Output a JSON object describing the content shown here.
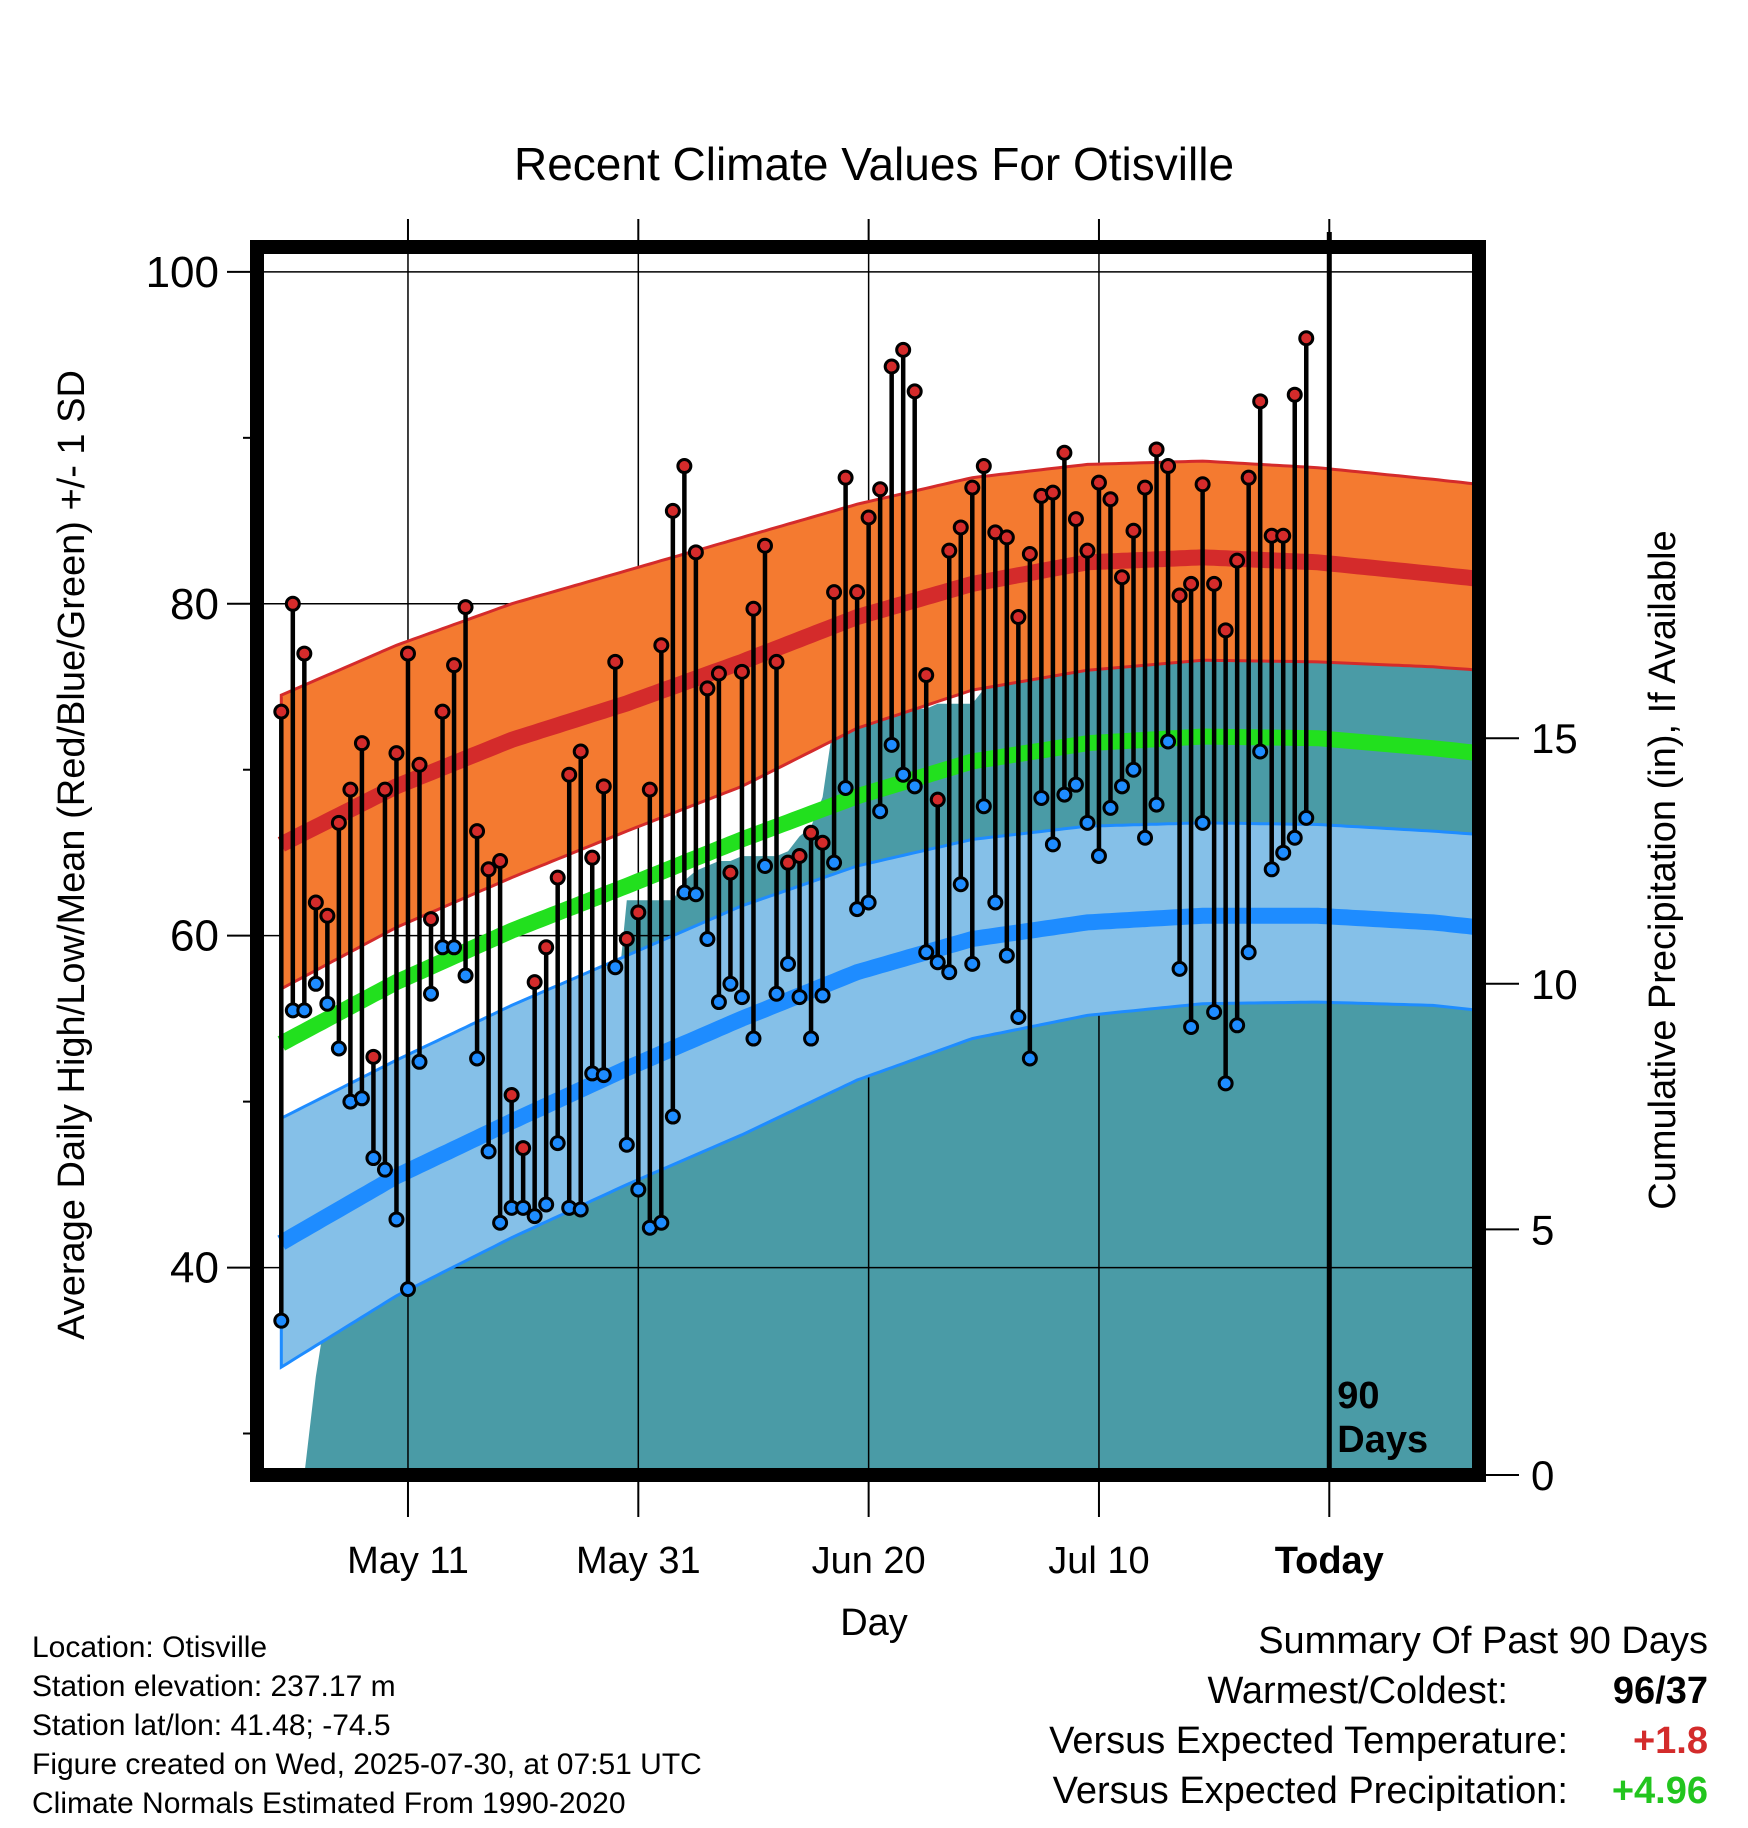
{
  "chart_data": {
    "type": "line",
    "title": "Recent Climate Values For Otisville",
    "xlabel": "Day",
    "ylabel": "Average Daily High/Low/Mean (Red/Blue/Green) +/- 1 SD",
    "ylabel_right": "Cumulative Precipitation (in), If Available",
    "ylim": [
      27.5,
      101.5
    ],
    "ylim_right": [
      0,
      25
    ],
    "y_ticks": [
      40,
      60,
      80,
      100
    ],
    "y_ticks_right": [
      0,
      5,
      10,
      15
    ],
    "x_range_days": [
      1,
      105
    ],
    "x_ticks": [
      {
        "day": 12,
        "label": "May 11"
      },
      {
        "day": 32,
        "label": "May 31"
      },
      {
        "day": 52,
        "label": "Jun 20"
      },
      {
        "day": 72,
        "label": "Jul 10"
      },
      {
        "day": 92,
        "label": "Today"
      }
    ],
    "today_marker": {
      "day": 92,
      "label_line1": "90",
      "label_line2": "Days"
    },
    "normals": {
      "days": [
        1,
        11,
        21,
        31,
        41,
        51,
        61,
        71,
        81,
        91,
        101,
        105
      ],
      "high_mean": [
        65.5,
        69.0,
        71.8,
        74.0,
        76.5,
        79.2,
        81.2,
        82.5,
        82.8,
        82.5,
        81.8,
        81.5
      ],
      "high_upper": [
        74.5,
        77.5,
        80.0,
        82.0,
        84.0,
        86.0,
        87.6,
        88.4,
        88.6,
        88.2,
        87.5,
        87.2
      ],
      "high_lower": [
        56.8,
        60.5,
        63.5,
        66.3,
        69.0,
        72.5,
        74.8,
        76.0,
        76.6,
        76.5,
        76.2,
        76.0
      ],
      "mean_mean": [
        53.5,
        57.2,
        60.3,
        63.0,
        65.8,
        68.4,
        70.5,
        71.6,
        72.0,
        71.9,
        71.3,
        71.0
      ],
      "low_mean": [
        41.5,
        45.5,
        48.8,
        52.0,
        55.0,
        57.8,
        59.8,
        60.8,
        61.2,
        61.2,
        60.8,
        60.5
      ],
      "low_upper": [
        49.0,
        52.5,
        55.8,
        58.8,
        61.8,
        64.2,
        65.8,
        66.6,
        66.8,
        66.7,
        66.3,
        66.1
      ],
      "low_lower": [
        34.0,
        38.3,
        41.8,
        45.0,
        48.0,
        51.3,
        53.8,
        55.2,
        55.9,
        56.0,
        55.8,
        55.5
      ],
      "colors": {
        "high": "#d42b2b",
        "high_band": "#f47a30",
        "mean": "#22e01e",
        "low": "#1e8cff",
        "low_band": "#85c0e8"
      }
    },
    "daily": {
      "start_day": 1,
      "high": [
        73.5,
        80.0,
        77.0,
        62.0,
        61.2,
        66.8,
        68.8,
        71.6,
        52.7,
        68.8,
        71.0,
        77.0,
        70.3,
        61.0,
        73.5,
        76.3,
        79.8,
        66.3,
        64.0,
        64.5,
        50.4,
        47.2,
        57.2,
        59.3,
        63.5,
        69.7,
        71.1,
        64.7,
        69.0,
        76.5,
        59.8,
        61.4,
        68.8,
        77.5,
        85.6,
        88.3,
        83.1,
        74.9,
        75.8,
        63.8,
        75.9,
        79.7,
        83.5,
        76.5,
        64.4,
        64.8,
        66.2,
        65.6,
        80.7,
        87.6,
        80.7,
        85.2,
        86.9,
        94.3,
        95.3,
        92.8,
        75.7,
        68.2,
        83.2,
        84.6,
        87.0,
        88.3,
        84.3,
        84.0,
        79.2,
        83.0,
        86.5,
        86.7,
        89.1,
        85.1,
        83.2,
        87.3,
        86.3,
        81.6,
        84.4,
        87.0,
        89.3,
        88.3,
        80.5,
        81.2,
        87.2,
        81.2,
        78.4,
        82.6,
        87.6,
        92.2,
        84.1,
        84.1,
        92.6,
        96.0
      ],
      "low": [
        36.8,
        55.5,
        55.5,
        57.1,
        55.9,
        53.2,
        50.0,
        50.2,
        46.6,
        45.9,
        42.9,
        38.7,
        52.4,
        56.5,
        59.3,
        59.3,
        57.6,
        52.6,
        47.0,
        42.7,
        43.6,
        43.6,
        43.1,
        43.8,
        47.5,
        43.6,
        43.5,
        51.7,
        51.6,
        58.1,
        47.4,
        44.7,
        42.4,
        42.7,
        49.1,
        62.6,
        62.5,
        59.8,
        56.0,
        57.1,
        56.3,
        53.8,
        64.2,
        56.5,
        58.3,
        56.3,
        53.8,
        56.4,
        64.4,
        68.9,
        61.6,
        62.0,
        67.5,
        71.5,
        69.7,
        69.0,
        59.0,
        58.4,
        57.8,
        63.1,
        58.3,
        67.8,
        62.0,
        58.8,
        55.1,
        52.6,
        68.3,
        65.5,
        68.5,
        69.1,
        66.8,
        64.8,
        67.7,
        69.0,
        70.0,
        65.9,
        67.9,
        71.7,
        58.0,
        54.5,
        66.8,
        55.4,
        51.1,
        54.6,
        59.0,
        71.1,
        64.0,
        65.0,
        65.9,
        67.1
      ]
    },
    "precip": {
      "days": [
        1,
        3,
        4,
        5,
        6,
        7,
        8,
        9,
        10,
        11,
        12,
        13,
        14,
        16,
        17,
        18,
        19,
        20,
        21,
        22,
        23,
        24,
        25,
        26,
        27,
        28,
        29,
        30,
        31,
        32,
        33,
        34,
        35,
        36,
        37,
        38,
        39,
        40,
        41,
        42,
        43,
        44,
        45,
        46,
        47,
        48,
        49,
        50,
        51,
        52,
        53,
        54,
        55,
        56,
        57,
        58,
        59,
        60,
        61,
        62,
        63,
        64,
        65,
        66,
        67,
        68,
        69,
        70,
        71,
        72,
        73,
        74,
        75,
        76,
        77,
        78,
        79,
        80,
        81,
        82,
        83,
        84,
        85,
        86,
        87,
        88,
        89,
        90,
        91,
        92,
        105
      ],
      "values": [
        0.0,
        0.0,
        2.0,
        3.5,
        3.9,
        4.0,
        4.2,
        5.8,
        6.6,
        6.6,
        6.6,
        6.8,
        7.6,
        7.7,
        7.7,
        7.7,
        7.7,
        8.0,
        8.8,
        9.0,
        9.1,
        9.1,
        9.1,
        9.1,
        9.1,
        9.1,
        9.2,
        9.3,
        11.7,
        11.7,
        11.7,
        11.7,
        11.7,
        12.1,
        12.3,
        12.4,
        12.5,
        12.5,
        12.6,
        12.6,
        12.6,
        12.6,
        12.7,
        13.0,
        13.2,
        13.8,
        15.4,
        15.4,
        15.5,
        15.5,
        15.6,
        15.6,
        15.6,
        15.6,
        15.6,
        15.7,
        15.7,
        15.7,
        15.7,
        16.0,
        16.1,
        16.4,
        16.5,
        16.5,
        16.5,
        16.5,
        16.5,
        16.5,
        16.5,
        16.5,
        16.6,
        16.6,
        16.6,
        16.6,
        16.8,
        16.8,
        16.8,
        16.8,
        16.8,
        16.8,
        16.8,
        16.8,
        16.8,
        16.8,
        16.8,
        16.8,
        16.9,
        16.9,
        16.9,
        16.9,
        16.9
      ],
      "color": "#4a9ba6"
    }
  },
  "info": {
    "location": "Location: Otisville",
    "elevation": "Station elevation: 237.17 m",
    "latlon": "Station lat/lon: 41.48; -74.5",
    "created": "Figure created on Wed, 2025-07-30, at 07:51 UTC",
    "normals": "Climate Normals Estimated From 1990-2020"
  },
  "summary": {
    "title": "Summary Of Past 90 Days",
    "warm_label": "Warmest/Coldest:",
    "warm_value": "96/37",
    "temp_label": "Versus Expected Temperature:",
    "temp_value": "+1.8",
    "temp_color": "#d32b2b",
    "precip_label": "Versus Expected Precipitation:",
    "precip_value": "+4.96",
    "precip_color": "#22c51e"
  }
}
